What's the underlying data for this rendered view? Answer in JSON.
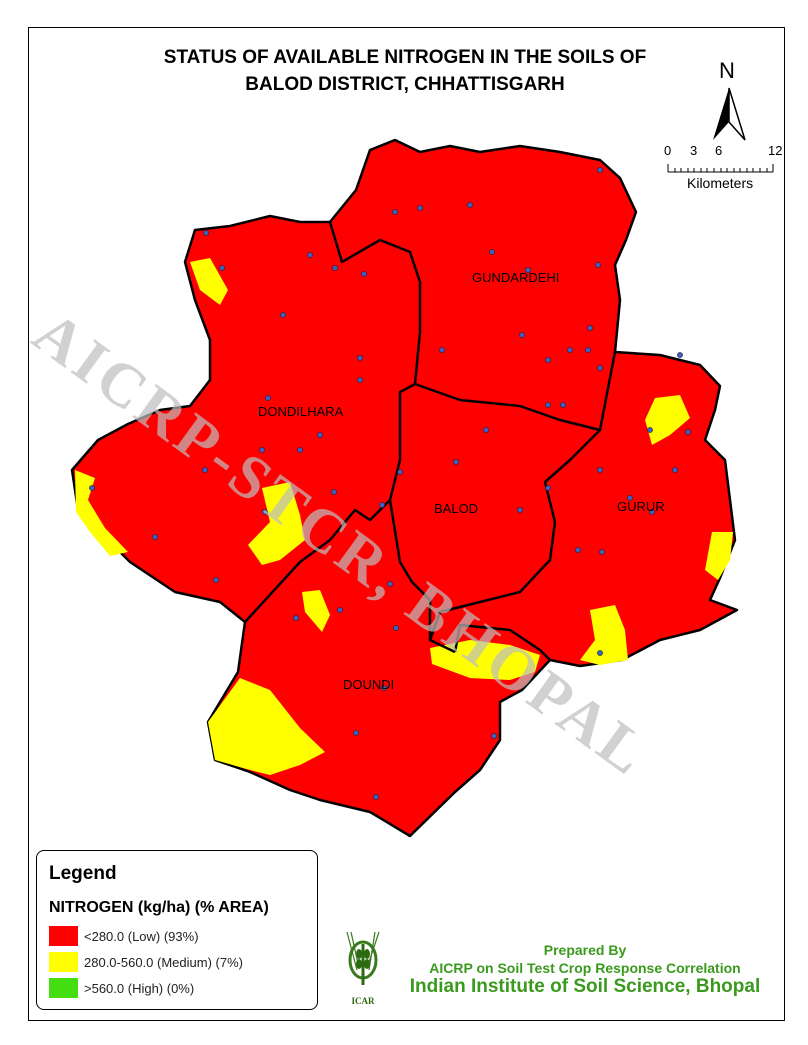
{
  "title": {
    "line1": "STATUS OF AVAILABLE NITROGEN IN THE SOILS OF",
    "line2": "BALOD DISTRICT, CHHATTISGARH"
  },
  "north_arrow": {
    "label": "N",
    "icon": "north-arrow-icon"
  },
  "scale_bar": {
    "ticks": [
      "0",
      "3",
      "6",
      "12"
    ],
    "unit": "Kilometers"
  },
  "districts": {
    "gunderdehi": "GUNDARDEHI",
    "dondilhara": "DONDILHARA",
    "balod": "BALOD",
    "gurur": "GURUR",
    "doundi": "DOUNDI"
  },
  "watermark": "AICRP-STCR, BHOPAL",
  "legend": {
    "title": "Legend",
    "subtitle": "NITROGEN (kg/ha) (% AREA)",
    "items": [
      {
        "label": "<280.0 (Low) (93%)",
        "color": "#ff0000"
      },
      {
        "label": "280.0-560.0 (Medium) (7%)",
        "color": "#ffff00"
      },
      {
        "label": ">560.0 (High) (0%)",
        "color": "#44dd11"
      }
    ]
  },
  "credits": {
    "prepared_by": "Prepared By",
    "org": "AICRP on Soil Test Crop Response Correlation",
    "institute": "Indian Institute of Soil Science, Bhopal",
    "logo_text": "ICAR"
  },
  "colors": {
    "low": "#ff0000",
    "medium": "#ffff00",
    "high": "#44dd11",
    "sample_point": "#4060c0",
    "credit_text": "#3a9a1e"
  }
}
